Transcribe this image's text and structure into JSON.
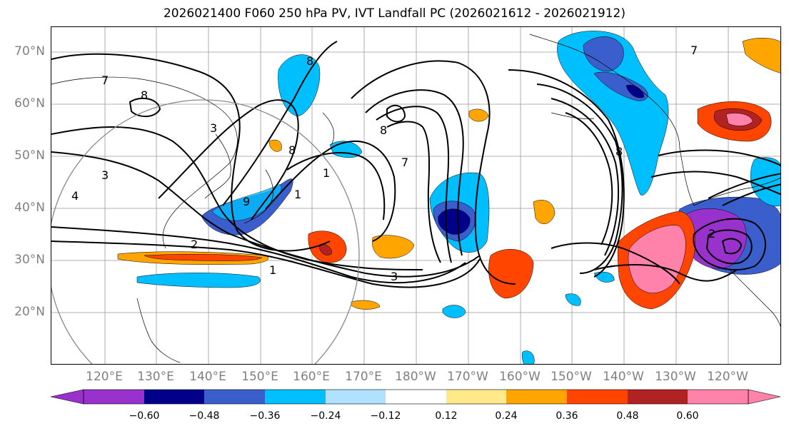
{
  "title": "2026021400 F060 250 hPa PV, IVT Landfall PC (2026021612 - 2026021912)",
  "map": {
    "lat_labels": [
      "70°N",
      "60°N",
      "50°N",
      "40°N",
      "30°N",
      "20°N"
    ],
    "lon_labels": [
      "120°E",
      "130°E",
      "140°E",
      "150°E",
      "160°E",
      "170°E",
      "180°W",
      "170°W",
      "160°W",
      "150°W",
      "140°W",
      "130°W",
      "120°W"
    ],
    "contour_labels": [
      "8",
      "7",
      "8",
      "3",
      "3",
      "4",
      "8",
      "8",
      "7",
      "1",
      "9",
      "2",
      "1",
      "1",
      "3",
      "7",
      "8",
      "2"
    ]
  },
  "colorbar": {
    "levels": [
      "−0.60",
      "−0.48",
      "−0.36",
      "−0.24",
      "−0.12",
      "0.12",
      "0.24",
      "0.36",
      "0.48",
      "0.60"
    ],
    "colors": [
      "#9932CC",
      "#00008B",
      "#3A5FCD",
      "#00BFFF",
      "#B0E2FF",
      "#FFFFFF",
      "#FFE989",
      "#FFA500",
      "#FF4500",
      "#B22222",
      "#FF82AB"
    ],
    "extend": "both"
  }
}
